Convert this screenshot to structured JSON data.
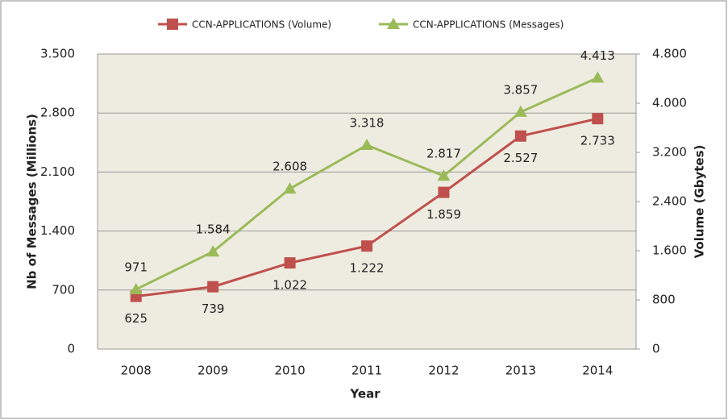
{
  "chart_data": {
    "type": "line",
    "categories": [
      "2008",
      "2009",
      "2010",
      "2011",
      "2012",
      "2013",
      "2014"
    ],
    "xlabel": "Year",
    "ylabel": "Nb of Messages (Millions)",
    "y2label": "Volume (Gbytes)",
    "ylim": [
      0,
      3500
    ],
    "yticks": [
      0,
      700,
      {
        "value": 1400,
        "label": "1.400"
      },
      {
        "value": 2100,
        "label": "2.100"
      },
      {
        "value": 2800,
        "label": "2.800"
      },
      {
        "value": 3500,
        "label": "3.500"
      }
    ],
    "y2lim": [
      0,
      4800
    ],
    "y2ticks": [
      0,
      800,
      {
        "value": 1600,
        "label": "1.600"
      },
      {
        "value": 2400,
        "label": "2.400"
      },
      {
        "value": 3200,
        "label": "3.200"
      },
      {
        "value": 4000,
        "label": "4.000"
      },
      {
        "value": 4800,
        "label": "4.800"
      }
    ],
    "grid": true,
    "legend": "top",
    "series": [
      {
        "name": "CCN-APPLICATIONS (Volume)",
        "color": "#c0504d",
        "marker": "square",
        "axis": "y",
        "values": [
          625,
          739,
          1022,
          1222,
          1859,
          2527,
          2733
        ],
        "value_labels": [
          "625",
          "739",
          "1.022",
          "1.222",
          "1.859",
          "2.527",
          "2.733"
        ]
      },
      {
        "name": "CCN-APPLICATIONS (Messages)",
        "color": "#9bbb59",
        "marker": "triangle",
        "axis": "y2",
        "values": [
          971,
          1584,
          2608,
          3318,
          2817,
          3857,
          4413
        ],
        "value_labels": [
          "971",
          "1.584",
          "2.608",
          "3.318",
          "2.817",
          "3.857",
          "4.413"
        ]
      }
    ]
  }
}
